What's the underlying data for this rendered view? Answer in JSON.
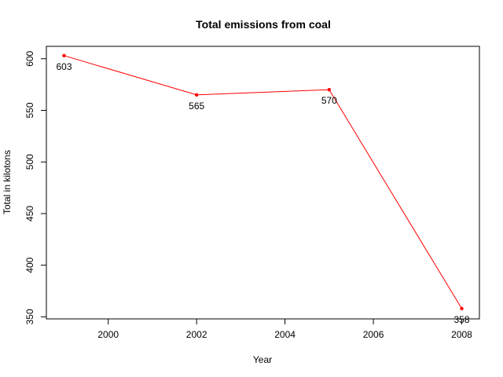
{
  "chart_data": {
    "type": "line",
    "title": "Total emissions from coal",
    "xlabel": "Year",
    "ylabel": "Total in kilotons",
    "x": [
      1999,
      2002,
      2005,
      2008
    ],
    "values": [
      603,
      565,
      570,
      358
    ],
    "data_labels": [
      "603",
      "565",
      "570",
      "358"
    ],
    "xlim": [
      1998.6,
      2008.4
    ],
    "ylim": [
      348,
      612
    ],
    "x_ticks": [
      2000,
      2002,
      2004,
      2006,
      2008
    ],
    "x_tick_labels": [
      "2000",
      "2002",
      "2004",
      "2006",
      "2008"
    ],
    "y_ticks": [
      350,
      400,
      450,
      500,
      550,
      600
    ],
    "y_tick_labels": [
      "350",
      "400",
      "450",
      "500",
      "550",
      "600"
    ],
    "grid": false,
    "legend": "none",
    "colors": {
      "line": "#ff0000",
      "point": "#ff0000",
      "axis": "#000000",
      "text": "#000000"
    }
  }
}
